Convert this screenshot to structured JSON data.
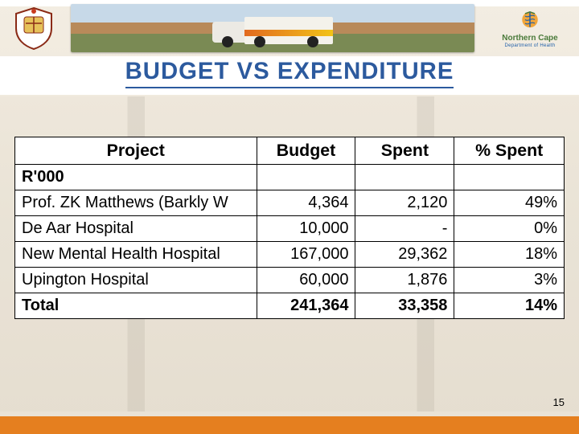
{
  "header": {
    "org_right_line1": "Northern Cape",
    "org_right_line2": "Department of Health"
  },
  "title": {
    "text": "BUDGET VS EXPENDITURE",
    "color": "#2c5a9e",
    "fontsize_pt": 22,
    "underline_color": "#2c5a9e"
  },
  "table": {
    "type": "table",
    "column_widths_pct": [
      44,
      18,
      18,
      20
    ],
    "header_fontsize_pt": 16,
    "cell_fontsize_pt": 15,
    "border_color": "#000000",
    "background_color": "#ffffff",
    "columns": [
      "Project",
      "Budget",
      "Spent",
      "% Spent"
    ],
    "column_align": [
      "left",
      "right",
      "right",
      "right"
    ],
    "subheader": {
      "label": "R'000",
      "bold": true
    },
    "rows": [
      {
        "project": "Prof. ZK Matthews (Barkly W",
        "budget": "4,364",
        "spent": "2,120",
        "pct": "49%"
      },
      {
        "project": "De Aar Hospital",
        "budget": "10,000",
        "spent": "-",
        "pct": "0%"
      },
      {
        "project": "New Mental Health Hospital",
        "budget": "167,000",
        "spent": "29,362",
        "pct": "18%"
      },
      {
        "project": "Upington Hospital",
        "budget": "60,000",
        "spent": "1,876",
        "pct": "3%"
      }
    ],
    "total": {
      "label": "Total",
      "budget": "241,364",
      "spent": "33,358",
      "pct": "14%",
      "bold": true
    }
  },
  "page_number": "15",
  "footer_bar_color": "#e57f1f"
}
